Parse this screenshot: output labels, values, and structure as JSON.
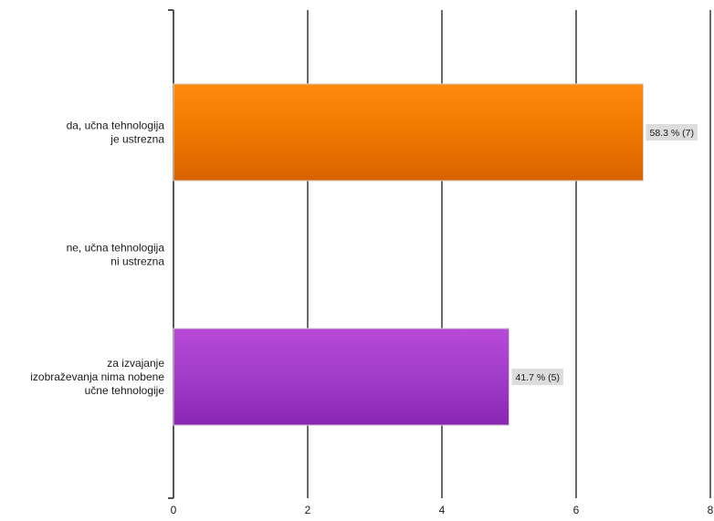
{
  "chart_data": {
    "type": "bar",
    "orientation": "horizontal",
    "title": "",
    "xlabel": "",
    "ylabel": "",
    "categories": [
      [
        "da, učna tehnologija",
        "je ustrezna"
      ],
      [
        "ne, učna tehnologija",
        "ni ustrezna"
      ],
      [
        "za izvajanje",
        "izobraževanja nima nobene",
        "učne tehnologije"
      ]
    ],
    "values": [
      7,
      0,
      5
    ],
    "data_labels": [
      "58.3 % (7)",
      "",
      "41.7 % (5)"
    ],
    "colors": [
      "#f07800",
      null,
      "#9c35c4"
    ],
    "xlim": [
      0,
      8
    ],
    "xticks": [
      0,
      2,
      4,
      6,
      8
    ],
    "grid": true,
    "legend": "none"
  }
}
